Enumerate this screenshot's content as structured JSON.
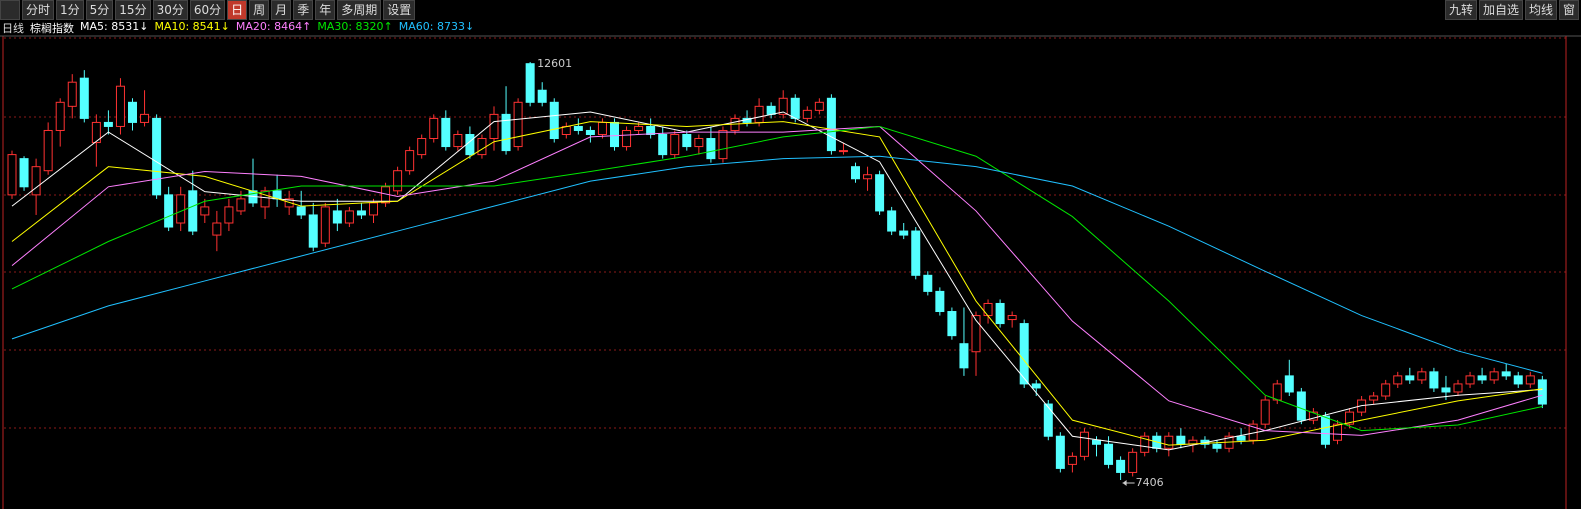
{
  "toolbar": {
    "tabs": [
      {
        "label": "分时"
      },
      {
        "label": "1分"
      },
      {
        "label": "5分"
      },
      {
        "label": "15分"
      },
      {
        "label": "30分"
      },
      {
        "label": "60分"
      },
      {
        "label": "日",
        "selected": true
      },
      {
        "label": "周"
      },
      {
        "label": "月"
      },
      {
        "label": "季"
      },
      {
        "label": "年"
      },
      {
        "label": "多周期"
      },
      {
        "label": "设置"
      }
    ],
    "right_tools": [
      "九转",
      "加自选",
      "均线",
      "窗"
    ]
  },
  "chart_data": {
    "type": "candlestick",
    "period": "日线",
    "title": "棕榈指数",
    "up_color": "#ff3232",
    "down_color": "#54ffff",
    "candles": [
      [
        10950,
        11500,
        10900,
        11450
      ],
      [
        11400,
        11430,
        11000,
        11050
      ],
      [
        10950,
        11400,
        10700,
        11300
      ],
      [
        11250,
        11850,
        11200,
        11750
      ],
      [
        11750,
        12150,
        11550,
        12100
      ],
      [
        12050,
        12450,
        11900,
        12350
      ],
      [
        12400,
        12500,
        11850,
        11900
      ],
      [
        11600,
        11950,
        11300,
        11850
      ],
      [
        11850,
        12000,
        11700,
        11800
      ],
      [
        11800,
        12400,
        11700,
        12300
      ],
      [
        12100,
        12150,
        11750,
        11850
      ],
      [
        11850,
        12250,
        11800,
        11950
      ],
      [
        11900,
        11950,
        10900,
        10950
      ],
      [
        10950,
        11050,
        10500,
        10550
      ],
      [
        10600,
        11050,
        10500,
        10950
      ],
      [
        11000,
        11250,
        10450,
        10500
      ],
      [
        10700,
        10900,
        10600,
        10800
      ],
      [
        10450,
        10750,
        10250,
        10600
      ],
      [
        10600,
        10900,
        10500,
        10800
      ],
      [
        10750,
        11000,
        10700,
        10900
      ],
      [
        11000,
        11400,
        10800,
        10850
      ],
      [
        10800,
        11050,
        10650,
        11000
      ],
      [
        11000,
        11200,
        10800,
        10900
      ],
      [
        10800,
        11000,
        10700,
        10900
      ],
      [
        10800,
        11000,
        10650,
        10700
      ],
      [
        10700,
        10850,
        10250,
        10300
      ],
      [
        10350,
        10850,
        10300,
        10800
      ],
      [
        10750,
        10900,
        10500,
        10600
      ],
      [
        10600,
        10800,
        10550,
        10750
      ],
      [
        10750,
        10850,
        10650,
        10700
      ],
      [
        10700,
        10900,
        10600,
        10850
      ],
      [
        10850,
        11100,
        10800,
        11050
      ],
      [
        11000,
        11300,
        10950,
        11250
      ],
      [
        11250,
        11550,
        11200,
        11500
      ],
      [
        11450,
        11700,
        11400,
        11650
      ],
      [
        11650,
        11950,
        11600,
        11900
      ],
      [
        11900,
        12000,
        11500,
        11550
      ],
      [
        11550,
        11750,
        11500,
        11700
      ],
      [
        11700,
        11800,
        11400,
        11450
      ],
      [
        11450,
        11700,
        11400,
        11650
      ],
      [
        11650,
        12050,
        11500,
        11950
      ],
      [
        11950,
        12300,
        11450,
        11500
      ],
      [
        11550,
        12150,
        11500,
        12100
      ],
      [
        12580,
        12601,
        12050,
        12100
      ],
      [
        12250,
        12350,
        12050,
        12100
      ],
      [
        12100,
        12150,
        11600,
        11650
      ],
      [
        11700,
        11850,
        11650,
        11800
      ],
      [
        11800,
        11900,
        11700,
        11750
      ],
      [
        11750,
        11800,
        11600,
        11700
      ],
      [
        11700,
        11900,
        11650,
        11850
      ],
      [
        11850,
        11900,
        11500,
        11550
      ],
      [
        11550,
        11800,
        11500,
        11750
      ],
      [
        11750,
        11850,
        11700,
        11800
      ],
      [
        11800,
        11900,
        11650,
        11700
      ],
      [
        11700,
        11800,
        11400,
        11450
      ],
      [
        11450,
        11750,
        11400,
        11700
      ],
      [
        11700,
        11750,
        11500,
        11550
      ],
      [
        11550,
        11700,
        11450,
        11650
      ],
      [
        11650,
        11800,
        11350,
        11400
      ],
      [
        11400,
        11800,
        11350,
        11750
      ],
      [
        11750,
        11950,
        11700,
        11900
      ],
      [
        11900,
        12000,
        11800,
        11850
      ],
      [
        11850,
        12150,
        11800,
        12050
      ],
      [
        12050,
        12100,
        11900,
        11950
      ],
      [
        11950,
        12250,
        11900,
        12150
      ],
      [
        12150,
        12200,
        11850,
        11900
      ],
      [
        11900,
        12050,
        11850,
        12000
      ],
      [
        12000,
        12150,
        11950,
        12100
      ],
      [
        12150,
        12200,
        11450,
        11500
      ],
      [
        11500,
        11600,
        11450,
        11500
      ],
      [
        11300,
        11350,
        11100,
        11150
      ],
      [
        11150,
        11300,
        11000,
        11200
      ],
      [
        11200,
        11250,
        10700,
        10750
      ],
      [
        10750,
        10800,
        10450,
        10500
      ],
      [
        10500,
        10600,
        10400,
        10450
      ],
      [
        10500,
        10550,
        9900,
        9950
      ],
      [
        9950,
        10000,
        9700,
        9750
      ],
      [
        9750,
        9800,
        9450,
        9500
      ],
      [
        9500,
        9550,
        9150,
        9200
      ],
      [
        9100,
        9550,
        8700,
        8800
      ],
      [
        9000,
        9500,
        8700,
        9450
      ],
      [
        9450,
        9650,
        9350,
        9600
      ],
      [
        9600,
        9650,
        9300,
        9350
      ],
      [
        9400,
        9500,
        9300,
        9450
      ],
      [
        9350,
        9400,
        8550,
        8600
      ],
      [
        8600,
        8650,
        8450,
        8550
      ],
      [
        8350,
        8400,
        7900,
        7950
      ],
      [
        7950,
        8000,
        7500,
        7550
      ],
      [
        7600,
        7750,
        7500,
        7700
      ],
      [
        7700,
        8050,
        7650,
        8000
      ],
      [
        7900,
        7950,
        7700,
        7850
      ],
      [
        7850,
        7950,
        7550,
        7600
      ],
      [
        7650,
        7700,
        7406,
        7500
      ],
      [
        7500,
        7800,
        7450,
        7750
      ],
      [
        7750,
        8000,
        7700,
        7950
      ],
      [
        7950,
        8000,
        7750,
        7800
      ],
      [
        7800,
        8000,
        7700,
        7950
      ],
      [
        7950,
        8050,
        7800,
        7850
      ],
      [
        7850,
        7950,
        7750,
        7900
      ],
      [
        7900,
        7950,
        7800,
        7850
      ],
      [
        7850,
        7900,
        7750,
        7800
      ],
      [
        7800,
        8000,
        7750,
        7950
      ],
      [
        7950,
        8050,
        7850,
        7900
      ],
      [
        7900,
        8150,
        7850,
        8100
      ],
      [
        8100,
        8450,
        8050,
        8400
      ],
      [
        8400,
        8650,
        8350,
        8600
      ],
      [
        8700,
        8900,
        8450,
        8500
      ],
      [
        8500,
        8550,
        8100,
        8150
      ],
      [
        8150,
        8300,
        8100,
        8250
      ],
      [
        8200,
        8250,
        7800,
        7850
      ],
      [
        7900,
        8150,
        7850,
        8100
      ],
      [
        8100,
        8300,
        8050,
        8250
      ],
      [
        8250,
        8450,
        8200,
        8400
      ],
      [
        8400,
        8500,
        8350,
        8450
      ],
      [
        8450,
        8650,
        8400,
        8600
      ],
      [
        8600,
        8750,
        8550,
        8700
      ],
      [
        8700,
        8800,
        8600,
        8650
      ],
      [
        8650,
        8800,
        8600,
        8750
      ],
      [
        8750,
        8800,
        8500,
        8550
      ],
      [
        8550,
        8700,
        8400,
        8500
      ],
      [
        8500,
        8650,
        8450,
        8600
      ],
      [
        8600,
        8750,
        8550,
        8700
      ],
      [
        8700,
        8800,
        8600,
        8650
      ],
      [
        8650,
        8800,
        8600,
        8750
      ],
      [
        8750,
        8850,
        8650,
        8700
      ],
      [
        8700,
        8750,
        8550,
        8600
      ],
      [
        8600,
        8750,
        8550,
        8700
      ],
      [
        8650,
        8700,
        8300,
        8350
      ]
    ],
    "series": [
      {
        "legend": "MA5: 8531↓",
        "color": "#ffffff",
        "x": [
          0,
          8,
          16,
          24,
          32,
          40,
          48,
          56,
          64,
          72,
          80,
          88,
          96,
          104,
          112,
          120,
          127
        ],
        "values": [
          10810,
          11730,
          10990,
          10870,
          10870,
          11860,
          11980,
          11730,
          11980,
          11360,
          9390,
          7950,
          7780,
          8020,
          8330,
          8460,
          8530
        ]
      },
      {
        "legend": "MA10: 8541↓",
        "color": "#ffff00",
        "x": [
          0,
          8,
          16,
          24,
          32,
          40,
          48,
          56,
          64,
          72,
          80,
          88,
          96,
          104,
          112,
          120,
          127
        ],
        "values": [
          10370,
          11300,
          11180,
          10810,
          10870,
          11610,
          11860,
          11800,
          11860,
          11670,
          9630,
          8150,
          7840,
          7900,
          8150,
          8390,
          8540
        ]
      },
      {
        "legend": "MA20: 8464↑",
        "color": "#ff80ff",
        "x": [
          0,
          8,
          16,
          24,
          32,
          40,
          48,
          56,
          64,
          72,
          80,
          88,
          96,
          104,
          112,
          120,
          127
        ],
        "values": [
          10070,
          11050,
          11240,
          11180,
          10930,
          11120,
          11670,
          11730,
          11730,
          11800,
          10750,
          9380,
          8390,
          8020,
          7960,
          8150,
          8460
        ]
      },
      {
        "legend": "MA30: 8320↑",
        "color": "#00e600",
        "x": [
          0,
          8,
          16,
          24,
          32,
          40,
          48,
          56,
          64,
          72,
          80,
          88,
          96,
          104,
          112,
          120,
          127
        ],
        "values": [
          9780,
          10370,
          10870,
          11060,
          11060,
          11060,
          11240,
          11430,
          11670,
          11800,
          11430,
          10680,
          9630,
          8460,
          8020,
          8090,
          8320
        ]
      },
      {
        "legend": "MA60: 8733↓",
        "color": "#20c0ff",
        "x": [
          0,
          8,
          16,
          24,
          32,
          40,
          48,
          56,
          64,
          72,
          80,
          88,
          96,
          104,
          112,
          120,
          127
        ],
        "values": [
          9160,
          9570,
          9880,
          10190,
          10500,
          10810,
          11120,
          11300,
          11400,
          11430,
          11300,
          11060,
          10560,
          10000,
          9450,
          9010,
          8733
        ]
      }
    ]
  }
}
